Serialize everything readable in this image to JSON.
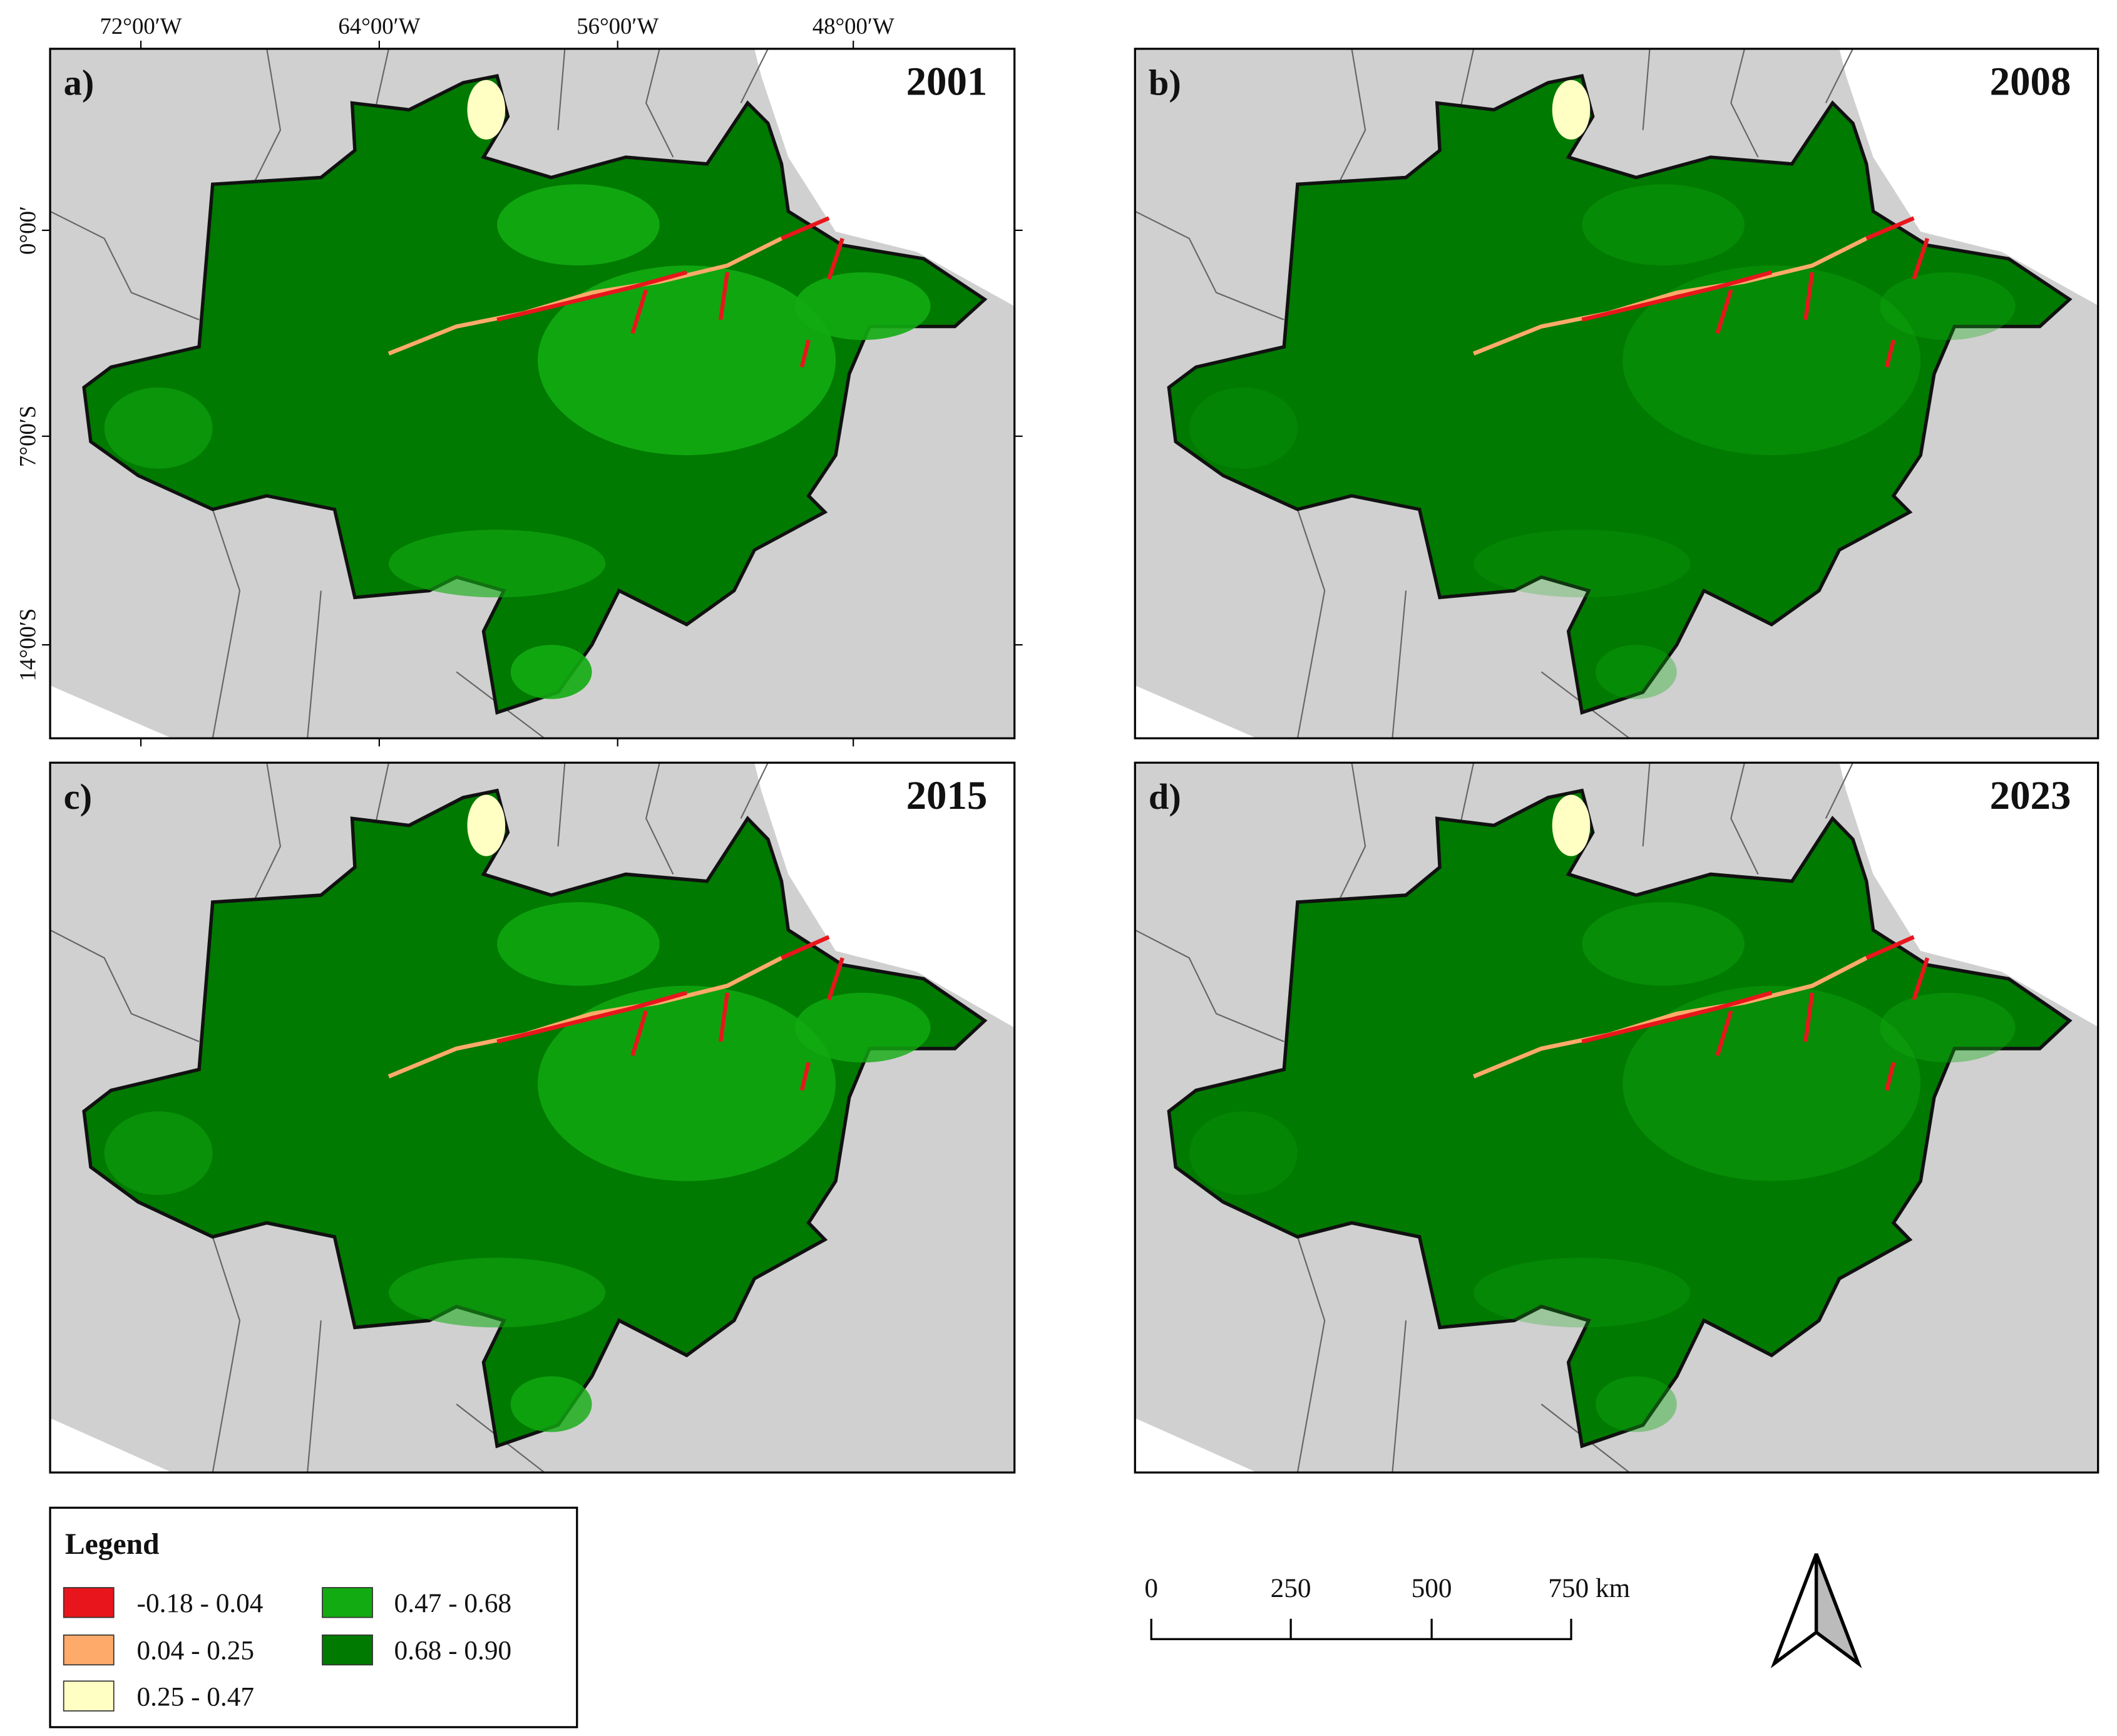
{
  "panels": [
    {
      "label": "a)",
      "year": "2001"
    },
    {
      "label": "b)",
      "year": "2008"
    },
    {
      "label": "c)",
      "year": "2015"
    },
    {
      "label": "d)",
      "year": "2023"
    }
  ],
  "coordinates": {
    "longitude": [
      "72°00′W",
      "64°00′W",
      "56°00′W",
      "48°00′W"
    ],
    "latitude": [
      "0°00′",
      "7°00′S",
      "14°00′S"
    ]
  },
  "legend": {
    "title": "Legend",
    "items": [
      {
        "label": "-0.18 - 0.04",
        "color": "#e8161c"
      },
      {
        "label": "0.04 - 0.25",
        "color": "#fdaa6a"
      },
      {
        "label": "0.25 - 0.47",
        "color": "#ffffc4"
      },
      {
        "label": "0.47 - 0.68",
        "color": "#12ab12"
      },
      {
        "label": "0.68 - 0.90",
        "color": "#007a00"
      }
    ]
  },
  "scale_bar": {
    "labels": [
      "0",
      "250",
      "500",
      "750 km"
    ]
  }
}
